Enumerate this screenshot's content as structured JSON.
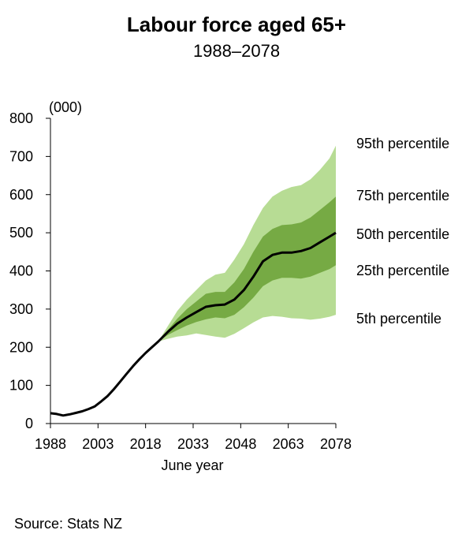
{
  "title": "Labour force aged 65+",
  "subtitle": "1988–2078",
  "source": "Source: Stats NZ",
  "chart_data": {
    "type": "area",
    "title": "Labour force aged 65+",
    "subtitle": "1988–2078",
    "xlabel": "June year",
    "ylabel": "(000)",
    "xlim": [
      1988,
      2078
    ],
    "ylim": [
      0,
      800
    ],
    "x_ticks": [
      "1988",
      "2003",
      "2018",
      "2033",
      "2048",
      "2063",
      "2078"
    ],
    "y_ticks": [
      "0",
      "100",
      "200",
      "300",
      "400",
      "500",
      "600",
      "700",
      "800"
    ],
    "grid": false,
    "colors": {
      "p5_95": "#b7dc94",
      "p25_75": "#76aa44",
      "median": "#000000"
    },
    "historical": {
      "x": [
        1988,
        1990,
        1992,
        1994,
        1996,
        1998,
        2000,
        2002,
        2004,
        2006,
        2008,
        2010,
        2012,
        2014,
        2016,
        2018,
        2020,
        2022
      ],
      "y": [
        27,
        25,
        21,
        24,
        28,
        32,
        38,
        45,
        58,
        72,
        90,
        110,
        130,
        150,
        168,
        185,
        200,
        215
      ]
    },
    "projection_x": [
      2022,
      2025,
      2028,
      2031,
      2034,
      2037,
      2040,
      2043,
      2046,
      2049,
      2052,
      2055,
      2058,
      2061,
      2064,
      2067,
      2070,
      2073,
      2076,
      2078
    ],
    "series": [
      {
        "name": "95th percentile",
        "values": [
          215,
          255,
          295,
          325,
          350,
          375,
          390,
          395,
          430,
          470,
          520,
          565,
          595,
          610,
          620,
          625,
          640,
          665,
          695,
          728
        ]
      },
      {
        "name": "75th percentile",
        "values": [
          215,
          245,
          275,
          300,
          320,
          340,
          345,
          345,
          370,
          405,
          450,
          490,
          510,
          520,
          522,
          527,
          540,
          560,
          580,
          595
        ]
      },
      {
        "name": "50th percentile",
        "values": [
          215,
          240,
          262,
          278,
          292,
          306,
          310,
          312,
          325,
          350,
          385,
          425,
          442,
          448,
          448,
          452,
          460,
          475,
          490,
          500
        ]
      },
      {
        "name": "25th percentile",
        "values": [
          215,
          232,
          245,
          257,
          266,
          273,
          278,
          276,
          285,
          305,
          330,
          360,
          375,
          382,
          382,
          380,
          385,
          395,
          405,
          415
        ]
      },
      {
        "name": "5th percentile",
        "values": [
          215,
          222,
          228,
          231,
          236,
          232,
          228,
          225,
          235,
          250,
          265,
          278,
          282,
          280,
          276,
          275,
          272,
          275,
          280,
          285
        ]
      }
    ],
    "legend": "right"
  }
}
